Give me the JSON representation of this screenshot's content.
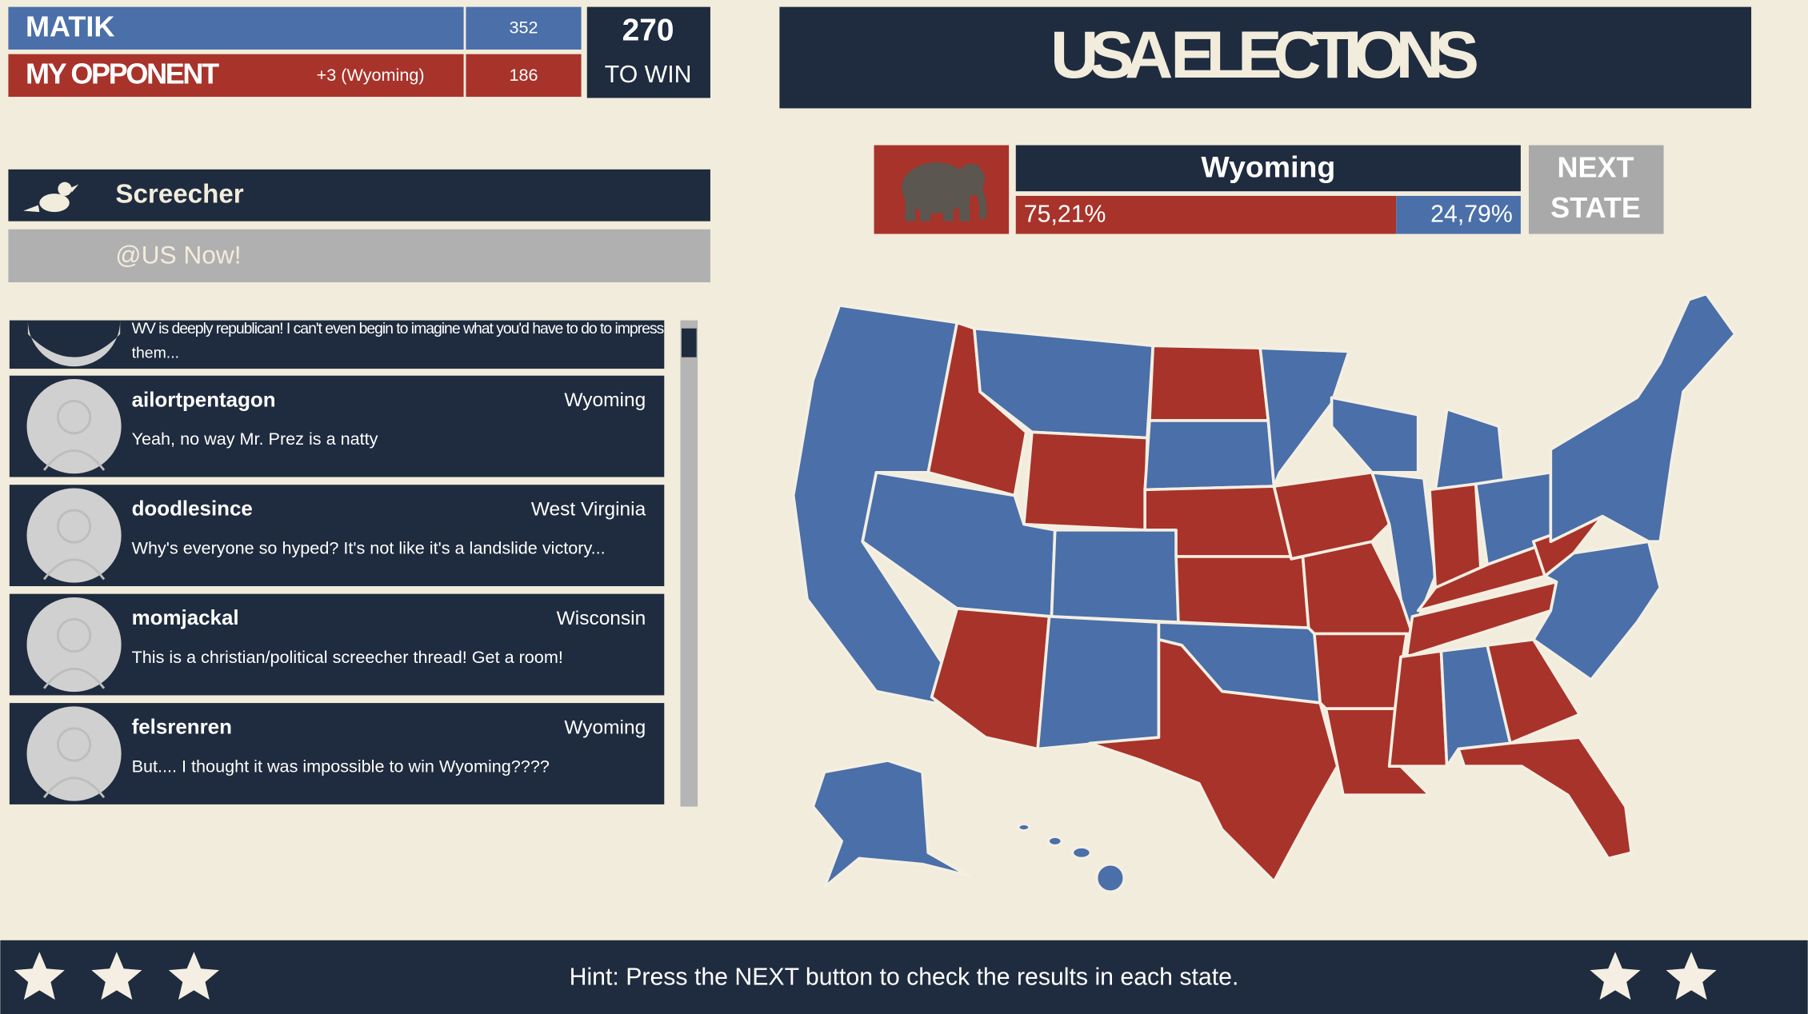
{
  "scoreboard": {
    "player": {
      "name": "MATIK",
      "score": "352"
    },
    "opponent": {
      "name": "MY OPPONENT",
      "note": "+3 (Wyoming)",
      "score": "186"
    },
    "goal": {
      "number": "270",
      "label": "TO WIN"
    }
  },
  "header": {
    "title": "USA ELECTIONS"
  },
  "result": {
    "state": "Wyoming",
    "red_share": "75,21%",
    "blue_share": "24,79%",
    "next_button": [
      "NEXT",
      "STATE"
    ]
  },
  "feed": {
    "app_name": "Screecher",
    "channel": "@US Now!",
    "partial_post": {
      "message_lines": [
        "WV is deeply republican! I can't even begin to imagine what you'd have to do to impress",
        "them..."
      ]
    },
    "posts": [
      {
        "user": "ailortpentagon",
        "location": "Wyoming",
        "message": "Yeah, no way Mr. Prez is a natty"
      },
      {
        "user": "doodlesince",
        "location": "West Virginia",
        "message": "Why's everyone so hyped? It's not like it's a landslide victory..."
      },
      {
        "user": "momjackal",
        "location": "Wisconsin",
        "message": "This is a christian/political screecher thread! Get a room!"
      },
      {
        "user": "felsrenren",
        "location": "Wyoming",
        "message": "But.... I thought it was impossible to win Wyoming????"
      }
    ]
  },
  "footer": {
    "hint": "Hint: Press the NEXT button to check the results in each state."
  }
}
